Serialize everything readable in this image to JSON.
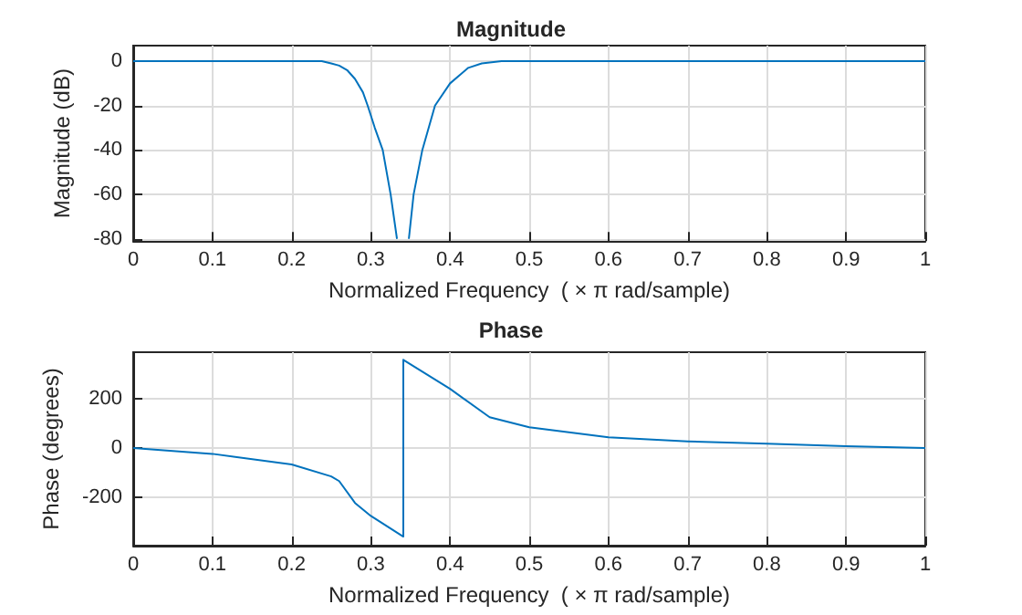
{
  "chart_data": [
    {
      "type": "line",
      "title": "Magnitude",
      "xlabel": "Normalized Frequency  ( × π rad/sample)",
      "ylabel": "Magnitude (dB)",
      "series": [
        {
          "color": "#0072bd",
          "x": [
            0,
            0.1,
            0.2,
            0.238,
            0.25,
            0.26,
            0.27,
            0.28,
            0.29,
            0.296,
            0.305,
            0.315,
            0.325,
            0.333
          ],
          "values": [
            0,
            0,
            0,
            0,
            -1,
            -2,
            -4,
            -8,
            -14,
            -20,
            -30,
            -40,
            -60,
            -80
          ]
        },
        {
          "color": "#0072bd",
          "x": [
            0.348,
            0.354,
            0.365,
            0.381,
            0.4,
            0.423,
            0.44,
            0.465,
            0.5,
            0.6,
            0.7,
            0.8,
            0.9,
            1
          ],
          "values": [
            -80,
            -60,
            -40,
            -20,
            -10,
            -3,
            -1,
            0,
            0,
            0,
            0,
            0,
            0,
            0
          ]
        }
      ],
      "xlim": [
        0,
        1
      ],
      "ylim": [
        -81,
        7
      ],
      "xticks": [
        0,
        0.1,
        0.2,
        0.3,
        0.4,
        0.5,
        0.6,
        0.7,
        0.8,
        0.9,
        1
      ],
      "yticks": [
        -80,
        -60,
        -40,
        -20,
        0
      ],
      "grid": true
    },
    {
      "type": "line",
      "title": "Phase",
      "xlabel": "Normalized Frequency  ( × π rad/sample)",
      "ylabel": "Phase (degrees)",
      "x": [
        0,
        0.1,
        0.2,
        0.25,
        0.26,
        0.28,
        0.3,
        0.341,
        0.341,
        0.4,
        0.45,
        0.5,
        0.6,
        0.7,
        0.8,
        0.9,
        1
      ],
      "series": [
        {
          "color": "#0072bd",
          "values": [
            0,
            -24,
            -67,
            -116,
            -135,
            -224,
            -277,
            -361,
            359,
            241,
            125,
            84,
            43,
            27,
            17,
            7,
            0
          ]
        }
      ],
      "xlim": [
        0,
        1
      ],
      "ylim": [
        -398,
        390
      ],
      "xticks": [
        0,
        0.1,
        0.2,
        0.3,
        0.4,
        0.5,
        0.6,
        0.7,
        0.8,
        0.9,
        1
      ],
      "yticks": [
        -200,
        0,
        200
      ],
      "grid": true
    }
  ]
}
